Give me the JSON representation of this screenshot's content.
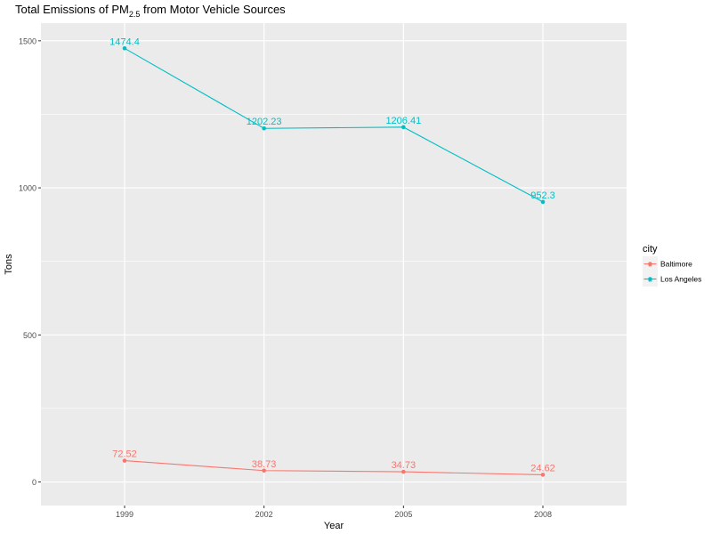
{
  "chart_data": {
    "type": "line",
    "title": {
      "prefix": "Total Emissions of PM",
      "subscript": "2.5",
      "suffix": " from Motor Vehicle Sources"
    },
    "xlabel": "Year",
    "ylabel": "Tons",
    "x": [
      "1999",
      "2002",
      "2005",
      "2008"
    ],
    "ylim": [
      -80,
      1560
    ],
    "yticks": [
      0,
      500,
      1000,
      1500
    ],
    "grid": true,
    "legend": {
      "title": "city",
      "position": "right"
    },
    "series": [
      {
        "name": "Baltimore",
        "color": "#F8766D",
        "values": [
          72.52,
          38.73,
          34.73,
          24.62
        ],
        "labels": [
          "72.52",
          "38.73",
          "34.73",
          "24.62"
        ]
      },
      {
        "name": "Los Angeles",
        "color": "#00BFC4",
        "values": [
          1474.4,
          1202.23,
          1206.41,
          952.3
        ],
        "labels": [
          "1474.4",
          "1202.23",
          "1206.41",
          "952.3"
        ]
      }
    ]
  }
}
